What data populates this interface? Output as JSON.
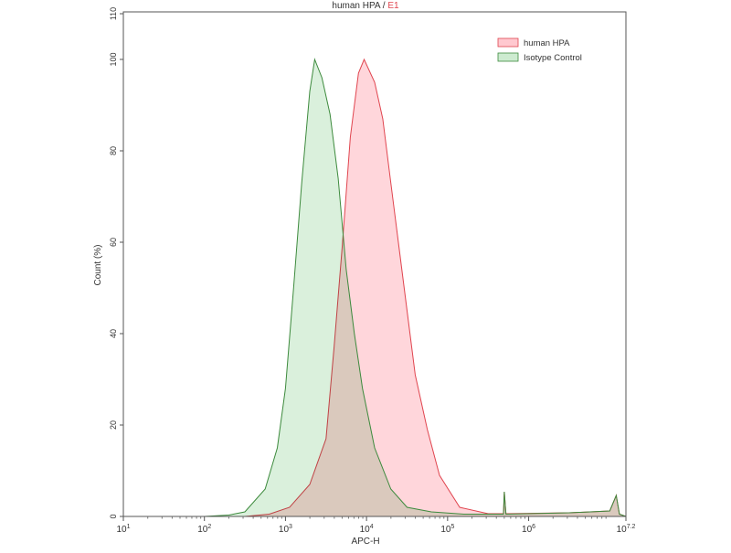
{
  "chart_data": {
    "type": "area",
    "title": "human HPA / ",
    "title_suffix": "E1",
    "xlabel": "APC-H",
    "ylabel": "Count (%)",
    "x_scale": "log",
    "xlim": [
      10,
      15848932
    ],
    "ylim": [
      0,
      110
    ],
    "x_ticks": [
      {
        "base": "10",
        "exp": "1",
        "value": 10
      },
      {
        "base": "10",
        "exp": "2",
        "value": 100
      },
      {
        "base": "10",
        "exp": "3",
        "value": 1000
      },
      {
        "base": "10",
        "exp": "4",
        "value": 10000
      },
      {
        "base": "10",
        "exp": "5",
        "value": 100000
      },
      {
        "base": "10",
        "exp": "6",
        "value": 1000000
      },
      {
        "base": "10",
        "exp": "7.2",
        "value": 15848932
      }
    ],
    "y_ticks": [
      "0",
      "20",
      "40",
      "60",
      "80",
      "100",
      "110"
    ],
    "grid": false,
    "legend_position": "top-right",
    "series": [
      {
        "name": "human HPA",
        "stroke": "#e0454f",
        "fill": "#ffc8cf",
        "x": [
          316,
          631,
          1122,
          1995,
          3162,
          3981,
          5012,
          6310,
          7943,
          9333,
          12589,
          15849,
          19953,
          25119,
          31623,
          39811,
          56234,
          79433,
          141254,
          316228,
          489779,
          501187,
          524807,
          3162278,
          10000000,
          12022644,
          13182567,
          15848932
        ],
        "y": [
          0,
          0.5,
          2,
          7,
          17,
          37,
          59,
          83,
          97,
          100,
          95,
          87,
          73,
          59,
          45,
          31,
          19,
          9,
          2,
          0.6,
          0.6,
          5.4,
          0.6,
          0.8,
          1.2,
          4.6,
          0.5,
          0
        ]
      },
      {
        "name": "Isotype Control",
        "stroke": "#3d8a3d",
        "fill": "#cdebd0",
        "x": [
          100,
          200,
          316,
          562,
          794,
          1000,
          1259,
          1585,
          1995,
          2291,
          2818,
          3548,
          4467,
          5623,
          7079,
          8913,
          12589,
          19953,
          31623,
          63096,
          158489,
          489779,
          501187,
          524807,
          3162278,
          10000000,
          12022644,
          13182567,
          15848932
        ],
        "y": [
          0,
          0.3,
          1,
          6,
          15,
          28,
          50,
          73,
          93,
          100,
          96,
          88,
          74,
          54,
          40,
          28,
          15,
          6,
          2,
          1,
          0.5,
          0.5,
          5.4,
          0.5,
          0.8,
          1.2,
          4.6,
          0.5,
          0
        ]
      }
    ]
  }
}
